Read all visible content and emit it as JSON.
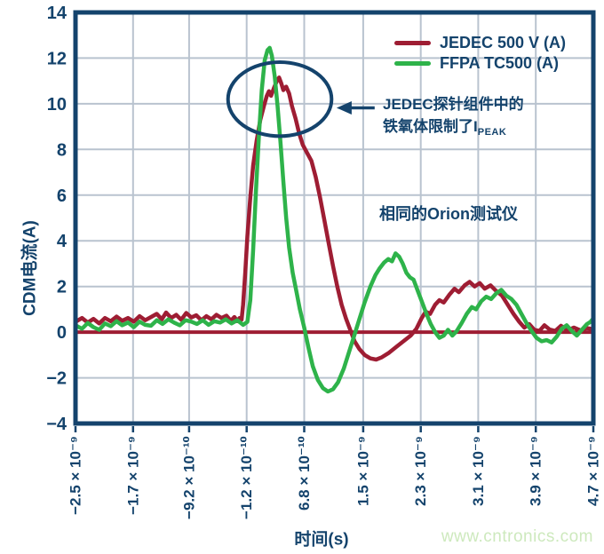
{
  "page": {
    "watermark": "www.cntronics.com"
  },
  "chart_data": {
    "type": "line",
    "title": "",
    "xlabel": "时间(s)",
    "ylabel": "CDM电流(A)",
    "xlim_ns": [
      -2.5,
      4.7
    ],
    "ylim": [
      -4,
      14
    ],
    "grid": true,
    "legend_position": "top-right",
    "x_ticks_ns": [
      -2.5,
      -1.7,
      -0.92,
      -0.12,
      0.68,
      1.5,
      2.3,
      3.1,
      3.9,
      4.7
    ],
    "x_tick_labels": [
      "−2.5 × 10⁻⁹",
      "−1.7 × 10⁻⁹",
      "−9.2 × 10⁻¹⁰",
      "−1.2 × 10⁻¹⁰",
      "6.8 × 10⁻¹⁰",
      "1.5 × 10⁻⁹",
      "2.3 × 10⁻⁹",
      "3.1 × 10⁻⁹",
      "3.9 × 10⁻⁹",
      "4.7 × 10⁻⁹"
    ],
    "y_ticks": [
      14,
      12,
      10,
      8,
      6,
      4,
      2,
      0,
      -2,
      -4
    ],
    "y_tick_labels": [
      "14",
      "12",
      "10",
      "8",
      "6",
      "4",
      "2",
      "0",
      "−2",
      "−4"
    ],
    "zero_line_color": "#9e1d33",
    "colors": {
      "axis": "#14436c",
      "grid": "#b9c3cf",
      "text": "#14436c",
      "watermark": "#cde9bd"
    },
    "series": [
      {
        "name": "JEDEC 500 V (A)",
        "color": "#9e1d33",
        "points": [
          [
            -2.5,
            0.45
          ],
          [
            -2.41,
            0.62
          ],
          [
            -2.33,
            0.42
          ],
          [
            -2.25,
            0.58
          ],
          [
            -2.17,
            0.38
          ],
          [
            -2.09,
            0.62
          ],
          [
            -2.01,
            0.48
          ],
          [
            -1.93,
            0.68
          ],
          [
            -1.85,
            0.5
          ],
          [
            -1.77,
            0.62
          ],
          [
            -1.69,
            0.46
          ],
          [
            -1.61,
            0.7
          ],
          [
            -1.53,
            0.52
          ],
          [
            -1.45,
            0.66
          ],
          [
            -1.37,
            0.8
          ],
          [
            -1.3,
            0.56
          ],
          [
            -1.24,
            0.86
          ],
          [
            -1.17,
            0.62
          ],
          [
            -1.1,
            0.76
          ],
          [
            -1.03,
            0.54
          ],
          [
            -0.96,
            0.84
          ],
          [
            -0.89,
            0.64
          ],
          [
            -0.82,
            0.74
          ],
          [
            -0.75,
            0.52
          ],
          [
            -0.68,
            0.7
          ],
          [
            -0.61,
            0.56
          ],
          [
            -0.54,
            0.76
          ],
          [
            -0.47,
            0.62
          ],
          [
            -0.4,
            0.72
          ],
          [
            -0.34,
            0.5
          ],
          [
            -0.29,
            0.66
          ],
          [
            -0.25,
            0.48
          ],
          [
            -0.22,
            0.62
          ],
          [
            -0.19,
            0.55
          ],
          [
            -0.17,
            1.2
          ],
          [
            -0.14,
            2.6
          ],
          [
            -0.11,
            4.2
          ],
          [
            -0.07,
            5.9
          ],
          [
            -0.03,
            7.3
          ],
          [
            0.02,
            8.4
          ],
          [
            0.07,
            9.3
          ],
          [
            0.12,
            9.9
          ],
          [
            0.16,
            10.35
          ],
          [
            0.19,
            10.55
          ],
          [
            0.22,
            10.35
          ],
          [
            0.26,
            10.7
          ],
          [
            0.3,
            11.0
          ],
          [
            0.33,
            11.15
          ],
          [
            0.36,
            10.9
          ],
          [
            0.39,
            10.6
          ],
          [
            0.43,
            10.75
          ],
          [
            0.47,
            10.45
          ],
          [
            0.51,
            9.9
          ],
          [
            0.56,
            9.35
          ],
          [
            0.61,
            8.7
          ],
          [
            0.66,
            8.2
          ],
          [
            0.72,
            7.85
          ],
          [
            0.78,
            7.5
          ],
          [
            0.84,
            6.8
          ],
          [
            0.9,
            5.9
          ],
          [
            0.96,
            4.9
          ],
          [
            1.02,
            3.9
          ],
          [
            1.08,
            2.9
          ],
          [
            1.14,
            2.0
          ],
          [
            1.2,
            1.2
          ],
          [
            1.26,
            0.6
          ],
          [
            1.32,
            0.1
          ],
          [
            1.38,
            -0.4
          ],
          [
            1.45,
            -0.75
          ],
          [
            1.52,
            -1.0
          ],
          [
            1.6,
            -1.15
          ],
          [
            1.68,
            -1.2
          ],
          [
            1.76,
            -1.1
          ],
          [
            1.86,
            -0.9
          ],
          [
            1.96,
            -0.65
          ],
          [
            2.06,
            -0.4
          ],
          [
            2.16,
            -0.15
          ],
          [
            2.24,
            0.15
          ],
          [
            2.31,
            0.6
          ],
          [
            2.37,
            0.9
          ],
          [
            2.43,
            0.8
          ],
          [
            2.5,
            1.2
          ],
          [
            2.56,
            1.4
          ],
          [
            2.62,
            1.3
          ],
          [
            2.7,
            1.65
          ],
          [
            2.77,
            1.9
          ],
          [
            2.83,
            1.75
          ],
          [
            2.91,
            2.05
          ],
          [
            2.98,
            2.2
          ],
          [
            3.05,
            2.0
          ],
          [
            3.12,
            2.15
          ],
          [
            3.19,
            1.9
          ],
          [
            3.27,
            2.05
          ],
          [
            3.35,
            1.8
          ],
          [
            3.43,
            1.6
          ],
          [
            3.51,
            1.2
          ],
          [
            3.59,
            0.8
          ],
          [
            3.67,
            0.45
          ],
          [
            3.74,
            0.2
          ],
          [
            3.81,
            0.35
          ],
          [
            3.88,
            0.1
          ],
          [
            3.95,
            0.05
          ],
          [
            4.02,
            0.3
          ],
          [
            4.09,
            0.12
          ],
          [
            4.17,
            0.05
          ],
          [
            4.25,
            0.28
          ],
          [
            4.34,
            0.08
          ],
          [
            4.43,
            0.2
          ],
          [
            4.52,
            0.08
          ],
          [
            4.61,
            0.18
          ],
          [
            4.7,
            0.12
          ]
        ]
      },
      {
        "name": "FFPA TC500 (A)",
        "color": "#2eb34a",
        "points": [
          [
            -2.5,
            0.3
          ],
          [
            -2.41,
            0.15
          ],
          [
            -2.33,
            0.4
          ],
          [
            -2.25,
            0.22
          ],
          [
            -2.17,
            0.1
          ],
          [
            -2.09,
            0.38
          ],
          [
            -2.01,
            0.26
          ],
          [
            -1.93,
            0.48
          ],
          [
            -1.85,
            0.3
          ],
          [
            -1.77,
            0.42
          ],
          [
            -1.69,
            0.22
          ],
          [
            -1.61,
            0.46
          ],
          [
            -1.53,
            0.32
          ],
          [
            -1.45,
            0.28
          ],
          [
            -1.37,
            0.52
          ],
          [
            -1.29,
            0.36
          ],
          [
            -1.21,
            0.56
          ],
          [
            -1.13,
            0.42
          ],
          [
            -1.05,
            0.3
          ],
          [
            -0.97,
            0.52
          ],
          [
            -0.89,
            0.46
          ],
          [
            -0.81,
            0.36
          ],
          [
            -0.73,
            0.52
          ],
          [
            -0.65,
            0.32
          ],
          [
            -0.57,
            0.48
          ],
          [
            -0.49,
            0.42
          ],
          [
            -0.41,
            0.56
          ],
          [
            -0.33,
            0.38
          ],
          [
            -0.25,
            0.52
          ],
          [
            -0.17,
            0.32
          ],
          [
            -0.11,
            0.45
          ],
          [
            -0.07,
            1.4
          ],
          [
            -0.03,
            3.6
          ],
          [
            0.01,
            6.2
          ],
          [
            0.05,
            8.6
          ],
          [
            0.09,
            10.6
          ],
          [
            0.13,
            11.9
          ],
          [
            0.17,
            12.35
          ],
          [
            0.2,
            12.45
          ],
          [
            0.23,
            12.1
          ],
          [
            0.27,
            11.2
          ],
          [
            0.31,
            9.9
          ],
          [
            0.35,
            8.3
          ],
          [
            0.39,
            6.6
          ],
          [
            0.43,
            5.0
          ],
          [
            0.47,
            3.7
          ],
          [
            0.52,
            2.6
          ],
          [
            0.57,
            1.8
          ],
          [
            0.62,
            1.0
          ],
          [
            0.68,
            0.2
          ],
          [
            0.74,
            -0.7
          ],
          [
            0.8,
            -1.5
          ],
          [
            0.87,
            -2.1
          ],
          [
            0.94,
            -2.45
          ],
          [
            1.01,
            -2.6
          ],
          [
            1.08,
            -2.5
          ],
          [
            1.15,
            -2.2
          ],
          [
            1.23,
            -1.6
          ],
          [
            1.3,
            -0.9
          ],
          [
            1.37,
            -0.2
          ],
          [
            1.44,
            0.5
          ],
          [
            1.52,
            1.3
          ],
          [
            1.6,
            2.0
          ],
          [
            1.67,
            2.5
          ],
          [
            1.73,
            2.8
          ],
          [
            1.79,
            3.05
          ],
          [
            1.85,
            3.2
          ],
          [
            1.9,
            3.1
          ],
          [
            1.95,
            3.45
          ],
          [
            2.0,
            3.3
          ],
          [
            2.05,
            3.0
          ],
          [
            2.1,
            2.6
          ],
          [
            2.15,
            2.4
          ],
          [
            2.2,
            2.3
          ],
          [
            2.26,
            1.8
          ],
          [
            2.32,
            1.3
          ],
          [
            2.38,
            0.8
          ],
          [
            2.44,
            0.35
          ],
          [
            2.5,
            0.0
          ],
          [
            2.56,
            -0.25
          ],
          [
            2.62,
            -0.15
          ],
          [
            2.68,
            0.1
          ],
          [
            2.74,
            -0.15
          ],
          [
            2.8,
            0.05
          ],
          [
            2.87,
            0.4
          ],
          [
            2.94,
            0.8
          ],
          [
            3.01,
            1.1
          ],
          [
            3.07,
            1.0
          ],
          [
            3.14,
            1.35
          ],
          [
            3.21,
            1.55
          ],
          [
            3.28,
            1.45
          ],
          [
            3.35,
            1.7
          ],
          [
            3.42,
            1.85
          ],
          [
            3.49,
            1.6
          ],
          [
            3.56,
            1.45
          ],
          [
            3.63,
            1.2
          ],
          [
            3.7,
            0.8
          ],
          [
            3.77,
            0.4
          ],
          [
            3.84,
            0.05
          ],
          [
            3.91,
            -0.25
          ],
          [
            3.98,
            -0.4
          ],
          [
            4.05,
            -0.35
          ],
          [
            4.12,
            -0.45
          ],
          [
            4.19,
            -0.2
          ],
          [
            4.26,
            0.15
          ],
          [
            4.33,
            0.3
          ],
          [
            4.4,
            0.05
          ],
          [
            4.47,
            -0.15
          ],
          [
            4.54,
            0.1
          ],
          [
            4.61,
            0.35
          ],
          [
            4.66,
            0.45
          ],
          [
            4.7,
            0.6
          ]
        ]
      }
    ],
    "annotations": {
      "peak_note_line1": "JEDEC探针组件中的",
      "peak_note_line2_main": "铁氧体限制了I",
      "peak_note_line2_sub": "PEAK",
      "tester_note": "相同的Orion测试仪",
      "ellipse": {
        "cx_ns": 0.34,
        "cy_a": 10.2,
        "rx_ns": 0.72,
        "ry_a": 1.62
      },
      "arrow": {
        "tip_ns": 1.13,
        "tail_ns": 1.66,
        "y_a": 9.82
      }
    }
  }
}
